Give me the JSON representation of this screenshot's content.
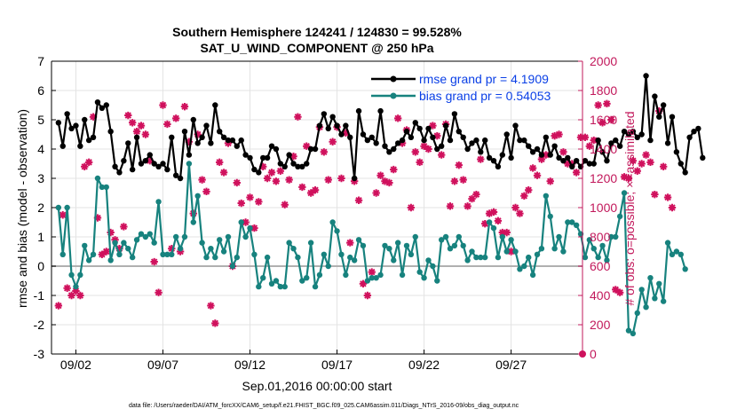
{
  "title_line1": "Southern Hemisphere 124241 / 124830 = 99.528%",
  "title_line2": "SAT_U_WIND_COMPONENT @ 250 hPa",
  "xlabel": "Sep.01,2016 00:00:00 start",
  "footer": "data file: /Users/raeder/DAI/ATM_forcXX/CAM6_setup/f.e21.FHIST_BGC.f09_025.CAM6assim.011/Diags_NTrS_2016-09/obs_diag_output.nc",
  "colors": {
    "rmse": "#000000",
    "bias": "#17827e",
    "obs": "#d0115d",
    "right_axis": "#c2185b",
    "legend_text": "#0a3fe6"
  },
  "chart_data": {
    "type": "line",
    "title": "Southern Hemisphere 124241 / 124830 = 99.528%\nSAT_U_WIND_COMPONENT @ 250 hPa",
    "xlabel": "Sep.01,2016 00:00:00 start",
    "ylabel_left": "rmse and bias (model - observation)",
    "ylabel_right": "# of obs: o=possible; ×=assimilated",
    "xlim_days": [
      0.6,
      31.1
    ],
    "ylim_left": [
      -3,
      7
    ],
    "ylim_right": [
      0,
      2000
    ],
    "grid": true,
    "legend_position": "top-right",
    "x_tick_labels": [
      "09/02",
      "09/07",
      "09/12",
      "09/17",
      "09/22",
      "09/27"
    ],
    "x_tick_days": [
      2,
      7,
      12,
      17,
      22,
      27
    ],
    "y_left_ticks": [
      -3,
      -2,
      -1,
      0,
      1,
      2,
      3,
      4,
      5,
      6,
      7
    ],
    "y_right_ticks": [
      0,
      200,
      400,
      600,
      800,
      1000,
      1200,
      1400,
      1600,
      1800,
      2000
    ],
    "x_step_days": 0.25,
    "series": [
      {
        "name": "rmse grand pr = 4.1909",
        "axis": "left",
        "values": [
          4.9,
          4.1,
          5.2,
          4.7,
          4.8,
          4.1,
          5.0,
          4.3,
          4.4,
          5.6,
          5.4,
          5.5,
          4.6,
          3.4,
          3.2,
          3.6,
          4.2,
          3.3,
          4.4,
          3.5,
          3.6,
          3.8,
          3.5,
          3.4,
          3.5,
          3.3,
          4.4,
          3.1,
          3.0,
          4.6,
          3.8,
          5.0,
          4.2,
          4.4,
          4.8,
          4.2,
          5.5,
          4.6,
          4.4,
          4.3,
          4.3,
          4.1,
          4.3,
          3.8,
          3.7,
          3.3,
          3.2,
          3.7,
          3.7,
          4.1,
          4.0,
          3.5,
          3.4,
          3.8,
          3.5,
          3.4,
          3.4,
          3.5,
          4.0,
          4.0,
          4.8,
          5.2,
          4.7,
          5.1,
          4.8,
          4.5,
          4.8,
          4.4,
          3.0,
          5.3,
          4.5,
          4.3,
          4.4,
          4.2,
          5.3,
          4.1,
          3.9,
          4.0,
          4.2,
          4.3,
          4.6,
          4.4,
          4.9,
          4.7,
          4.3,
          4.7,
          4.4,
          4.0,
          4.1,
          4.8,
          4.3,
          5.2,
          4.6,
          4.4,
          4.0,
          4.2,
          4.3,
          3.9,
          4.3,
          3.7,
          3.6,
          3.4,
          3.8,
          4.5,
          3.7,
          4.8,
          4.3,
          4.3,
          4.1,
          3.9,
          4.0,
          3.8,
          4.4,
          3.8,
          4.1,
          3.7,
          3.6,
          3.7,
          3.4,
          3.6,
          3.4,
          3.6,
          3.5,
          3.5,
          4.3,
          3.9,
          3.6,
          4.2,
          4.3,
          4.1,
          4.6,
          4.5,
          4.6,
          4.4,
          4.5,
          6.5,
          4.3,
          5.8,
          5.1,
          5.5,
          4.2,
          5.1,
          3.9,
          3.5,
          3.2,
          4.4,
          4.6,
          4.7,
          3.7
        ]
      },
      {
        "name": "bias grand pr = 0.54053",
        "axis": "left",
        "values": [
          2.0,
          0.4,
          2.0,
          -0.3,
          -0.7,
          -0.3,
          0.7,
          0.2,
          0.4,
          3.0,
          2.7,
          2.7,
          0.2,
          0.8,
          0.4,
          0.8,
          0.6,
          0.3,
          0.9,
          1.1,
          1.0,
          1.1,
          0.8,
          2.2,
          0.4,
          0.4,
          0.4,
          1.0,
          0.6,
          1.0,
          3.5,
          1.5,
          2.4,
          0.8,
          0.3,
          0.6,
          0.3,
          0.9,
          0.5,
          1.0,
          0.0,
          0.3,
          1.5,
          1.0,
          1.3,
          0.4,
          -0.7,
          -0.4,
          0.3,
          -0.6,
          -0.5,
          -0.7,
          -0.7,
          0.8,
          0.6,
          0.3,
          -0.5,
          -0.4,
          0.8,
          -0.7,
          -0.3,
          0.4,
          0.0,
          1.5,
          1.2,
          0.4,
          -0.3,
          0.3,
          0.2,
          0.9,
          0.7,
          -0.5,
          -0.4,
          -0.4,
          -0.3,
          0.7,
          0.6,
          0.2,
          0.8,
          -0.3,
          0.7,
          0.4,
          1.0,
          -0.2,
          -0.4,
          0.2,
          0.0,
          -0.5,
          0.9,
          1.0,
          0.6,
          0.7,
          1.0,
          0.7,
          0.2,
          0.5,
          0.3,
          0.3,
          0.3,
          1.5,
          1.3,
          0.3,
          1.0,
          0.5,
          0.9,
          0.5,
          -0.1,
          0.0,
          0.3,
          -0.3,
          0.4,
          0.6,
          2.4,
          1.7,
          0.6,
          1.0,
          0.5,
          1.5,
          1.5,
          1.4,
          1.1,
          0.3,
          0.9,
          0.6,
          0.3,
          0.7,
          0.2,
          1.0,
          1.0,
          1.7,
          2.5,
          -2.2,
          -2.3,
          -1.6,
          -0.8,
          -1.4,
          -0.4,
          -1.1,
          -0.6,
          -1.2,
          0.8,
          0.4,
          0.5,
          0.4,
          -0.1
        ]
      },
      {
        "name": "obs",
        "axis": "right",
        "marker": "asterisk",
        "values": [
          330,
          950,
          450,
          400,
          430,
          400,
          1280,
          1310,
          1620,
          930,
          680,
          700,
          830,
          780,
          720,
          870,
          1630,
          1580,
          1520,
          1560,
          1500,
          1320,
          630,
          420,
          1700,
          1570,
          720,
          1610,
          700,
          1690,
          1450,
          960,
          1500,
          1190,
          1110,
          330,
          210,
          1310,
          1240,
          1440,
          600,
          1170,
          1030,
          900,
          1070,
          860,
          1040,
          1280,
          1200,
          1240,
          1180,
          1250,
          1020,
          1190,
          1350,
          1620,
          1140,
          1420,
          1100,
          1120,
          1550,
          1380,
          1190,
          1450,
          1550,
          1200,
          1510,
          760,
          1180,
          1050,
          480,
          400,
          560,
          1100,
          1220,
          1180,
          1170,
          1260,
          1610,
          1440,
          1530,
          1000,
          1380,
          1310,
          1420,
          1400,
          1560,
          1490,
          1360,
          1570,
          1010,
          1180,
          1290,
          1190,
          1010,
          1060,
          1090,
          1330,
          890,
          960,
          970,
          910,
          830,
          830,
          700,
          1000,
          960,
          1080,
          1120,
          1270,
          1220,
          1330,
          1360,
          1180,
          1490,
          1500,
          1380,
          1300,
          1300,
          1240,
          1480,
          1480,
          1420,
          1460,
          1700,
          1580,
          1710,
          1600,
          440,
          420,
          1210,
          1200,
          1320,
          1250,
          1300,
          1360,
          1310,
          1090,
          1660,
          1280,
          1070,
          1000
        ]
      }
    ]
  }
}
